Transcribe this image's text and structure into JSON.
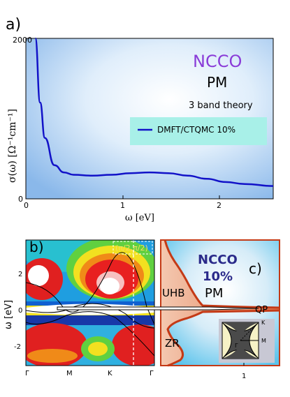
{
  "panel_a": {
    "label": "a)",
    "title": "NCCO",
    "subtitle": "PM",
    "theory": "3 band theory",
    "ylabel": "σ(ω)  [Ω⁻¹cm⁻¹]",
    "xlabel": "ω   [eV]",
    "legend": "DMFT/CTQMC 10%",
    "yticks": [
      "2000",
      "0"
    ],
    "xticks": [
      "0",
      "1",
      "2"
    ],
    "colors": {
      "curve": "#1212c8",
      "title": "#8a3cd8",
      "legend_bg": "#a8f0e8"
    }
  },
  "panel_b": {
    "label": "b)",
    "kpoint_label": "(π/2,π/2)",
    "ylabel": "ω [eV]",
    "yticks": [
      "2",
      "0",
      "-2"
    ],
    "xticks": [
      "Γ",
      "M",
      "K",
      "Γ"
    ]
  },
  "panel_c": {
    "label": "c)",
    "title": "NCCO",
    "doping": "10%",
    "phase": "PM",
    "peaks": [
      "UHB",
      "QP",
      "ZR"
    ],
    "xtick": "1",
    "inset_labels": [
      "K",
      "M",
      "Γ"
    ],
    "colors": {
      "curve": "#c43a16",
      "title": "#2a2a8a"
    }
  },
  "chart_data": [
    {
      "type": "line",
      "title": "NCCO",
      "xlabel": "ω [eV]",
      "ylabel": "σ(ω) [Ω⁻¹cm⁻¹]",
      "xlim": [
        0,
        2.6
      ],
      "ylim": [
        0,
        2000
      ],
      "legend_placement": "right",
      "series": [
        {
          "name": "DMFT/CTQMC 10%",
          "x": [
            0.1,
            0.15,
            0.2,
            0.3,
            0.4,
            0.5,
            0.7,
            0.9,
            1.1,
            1.3,
            1.5,
            1.7,
            1.9,
            2.1,
            2.3,
            2.6
          ],
          "y": [
            2000,
            1200,
            760,
            420,
            330,
            300,
            290,
            300,
            320,
            330,
            320,
            290,
            250,
            210,
            185,
            160
          ]
        }
      ]
    }
  ]
}
